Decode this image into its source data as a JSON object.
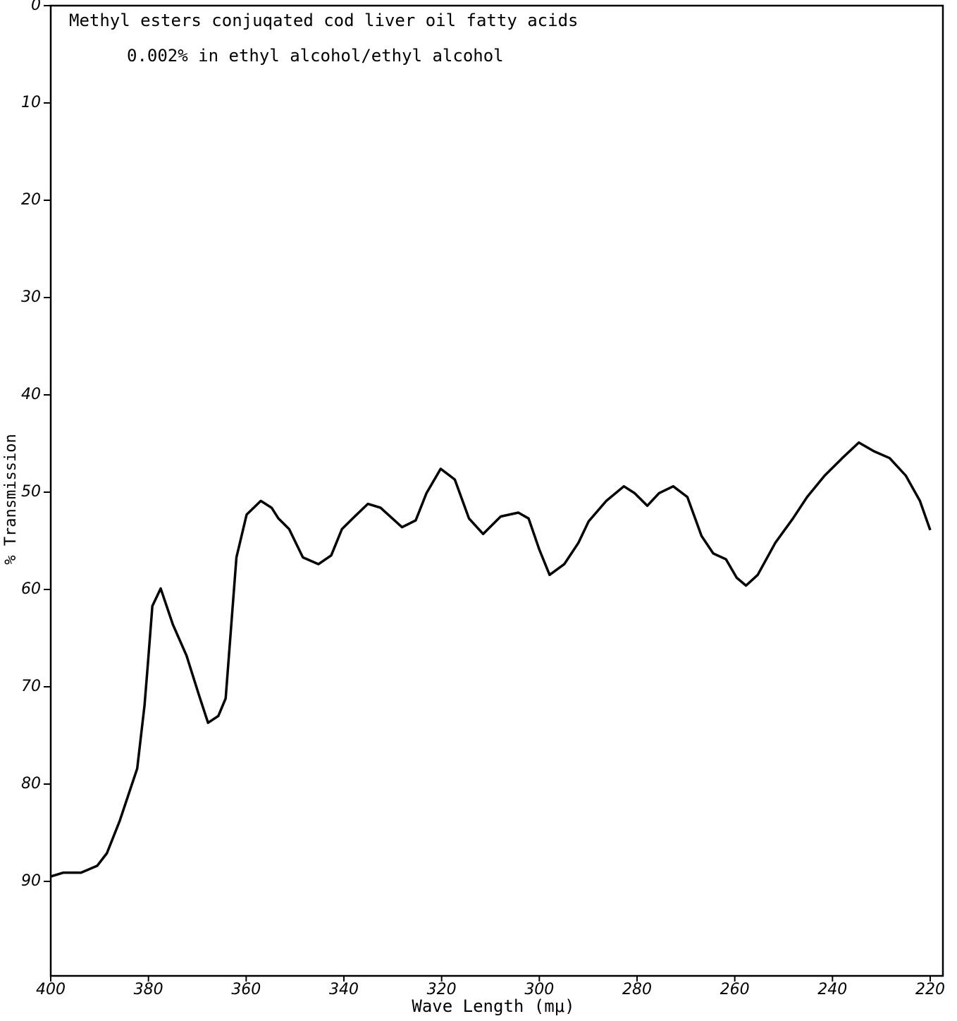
{
  "chart_data": {
    "type": "line",
    "title": "Methyl esters conjuqated cod liver oil fatty acids",
    "subtitle": "0.002% in ethyl alcohol/ethyl alcohol",
    "x_label": "Wave Length  (mμ)",
    "y_label": "% Transmission",
    "color": "#000000",
    "xlim": [
      400,
      217.4
    ],
    "ylim": [
      0,
      100
    ],
    "xticks": [
      400,
      380,
      360,
      340,
      320,
      300,
      280,
      260,
      240,
      220
    ],
    "yticks": [
      0,
      10,
      20,
      30,
      40,
      50,
      60,
      70,
      80,
      90
    ],
    "x": [
      400,
      397.4,
      393.8,
      390.5,
      388.5,
      385.9,
      382.3,
      380.8,
      380.1,
      379.2,
      377.5,
      375.0,
      372.2,
      369.7,
      367.8,
      365.7,
      364.2,
      362.0,
      359.9,
      357.0,
      354.8,
      353.4,
      351.2,
      348.4,
      345.2,
      342.6,
      340.4,
      338.2,
      335.1,
      332.5,
      328.1,
      325.3,
      323.1,
      320.2,
      317.3,
      314.4,
      311.5,
      307.9,
      304.3,
      302.2,
      300.0,
      297.9,
      294.9,
      292.0,
      289.9,
      286.3,
      282.7,
      280.5,
      277.9,
      275.5,
      272.6,
      269.7,
      266.8,
      264.4,
      261.8,
      259.6,
      257.7,
      255.3,
      251.7,
      248.1,
      245.2,
      241.6,
      238.0,
      234.6,
      231.5,
      228.3,
      225.0,
      222.1,
      220.0
    ],
    "values": [
      89.5,
      89.1,
      89.1,
      88.4,
      87.1,
      83.8,
      78.4,
      71.9,
      67.5,
      61.7,
      59.9,
      63.6,
      66.8,
      70.8,
      73.7,
      73.0,
      71.2,
      56.7,
      52.3,
      50.9,
      51.6,
      52.7,
      53.8,
      56.7,
      57.4,
      56.5,
      53.8,
      52.7,
      51.2,
      51.6,
      53.6,
      52.9,
      50.1,
      47.6,
      48.7,
      52.7,
      54.3,
      52.5,
      52.1,
      52.7,
      55.9,
      58.5,
      57.4,
      55.2,
      53.0,
      50.9,
      49.4,
      50.1,
      51.4,
      50.1,
      49.4,
      50.5,
      54.5,
      56.3,
      56.9,
      58.8,
      59.6,
      58.5,
      55.2,
      52.7,
      50.5,
      48.3,
      46.5,
      44.9,
      45.8,
      46.5,
      48.3,
      50.9,
      53.9
    ]
  }
}
